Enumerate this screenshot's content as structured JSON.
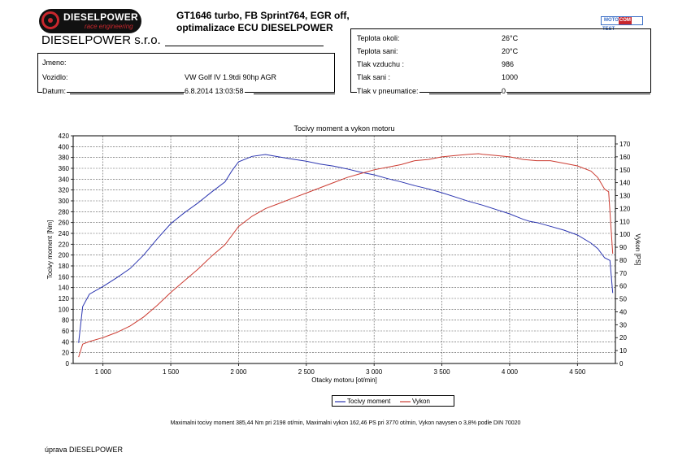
{
  "header": {
    "logo_text": "DIESELPOWER",
    "logo_subtext": "race engineering",
    "company": "DIESELPOWER s.r.o.",
    "title_line1": "GT1646 turbo, FB Sprint764, EGR off,",
    "title_line2": "optimalizace ECU DIESELPOWER",
    "brand_logo": {
      "left": "MOTO",
      "mid": "COM",
      "right": "TEST"
    }
  },
  "vehicle": {
    "rows": [
      {
        "label": "Jmeno:",
        "value": ""
      },
      {
        "label": "Vozidlo:",
        "value": "VW Golf IV 1.9tdi 90hp AGR"
      },
      {
        "label": "Datum:",
        "value": "6.8.2014 13:03:58"
      }
    ]
  },
  "conditions": {
    "rows": [
      {
        "label": "Teplota okoli:",
        "value": "26°C"
      },
      {
        "label": "Teplota sani:",
        "value": "20°C"
      },
      {
        "label": "Tlak vzduchu :",
        "value": "986"
      },
      {
        "label": "Tlak sani :",
        "value": "1000"
      },
      {
        "label": "Tlak v pneumatice:",
        "value": "0"
      }
    ]
  },
  "colors": {
    "torque": "#2b35b0",
    "power": "#cc3c32",
    "grid": "#555555",
    "logo_red": "#c9272d"
  },
  "chart_data": {
    "type": "line",
    "title": "Tocivy moment a vykon motoru",
    "xlabel": "Otacky motoru [ot/min]",
    "ylabel_left": "Tocivy moment [Nm]",
    "ylabel_right": "Vykon [PS]",
    "xlim": [
      780,
      4780
    ],
    "ylim_left": [
      0,
      420
    ],
    "ylim_right": [
      0,
      175
    ],
    "x_ticks": [
      1000,
      1500,
      2000,
      2500,
      3000,
      3500,
      4000,
      4500
    ],
    "x_tick_labels": [
      "1 000",
      "1 500",
      "2 000",
      "2 500",
      "3 000",
      "3 500",
      "4 000",
      "4 500"
    ],
    "y_left_ticks": [
      0,
      20,
      40,
      60,
      80,
      100,
      120,
      140,
      160,
      180,
      200,
      220,
      240,
      260,
      280,
      300,
      320,
      340,
      360,
      380,
      400,
      420
    ],
    "y_right_ticks": [
      0,
      10,
      20,
      30,
      40,
      50,
      60,
      70,
      80,
      90,
      100,
      110,
      120,
      130,
      140,
      150,
      160,
      170
    ],
    "grid": true,
    "legend_position": "bottom-center",
    "series": [
      {
        "name": "Tocivy moment",
        "axis": "left",
        "x": [
          820,
          850,
          900,
          1000,
          1100,
          1200,
          1300,
          1400,
          1500,
          1600,
          1700,
          1800,
          1900,
          1950,
          2000,
          2100,
          2198,
          2300,
          2400,
          2500,
          2600,
          2700,
          2800,
          2900,
          3000,
          3100,
          3200,
          3300,
          3400,
          3500,
          3600,
          3700,
          3800,
          3900,
          4000,
          4100,
          4150,
          4200,
          4300,
          4400,
          4500,
          4600,
          4650,
          4700,
          4740,
          4760
        ],
        "y": [
          38,
          105,
          128,
          142,
          158,
          175,
          200,
          230,
          258,
          278,
          296,
          316,
          335,
          355,
          372,
          382,
          385.44,
          381,
          377,
          373,
          368,
          364,
          359,
          353,
          348,
          341,
          335,
          328,
          322,
          315,
          307,
          299,
          292,
          284,
          276,
          266,
          262,
          260,
          253,
          246,
          237,
          222,
          212,
          195,
          190,
          130
        ]
      },
      {
        "name": "Vykon",
        "axis": "right",
        "x": [
          820,
          850,
          900,
          1000,
          1100,
          1200,
          1300,
          1400,
          1500,
          1600,
          1700,
          1800,
          1900,
          2000,
          2100,
          2200,
          2300,
          2400,
          2500,
          2600,
          2700,
          2800,
          2900,
          3000,
          3100,
          3200,
          3300,
          3400,
          3500,
          3600,
          3700,
          3770,
          3800,
          3900,
          4000,
          4100,
          4200,
          4300,
          4400,
          4500,
          4600,
          4650,
          4700,
          4730,
          4760
        ],
        "y": [
          5,
          15,
          17,
          20,
          24,
          29,
          36,
          45,
          55,
          64,
          73,
          83,
          92,
          106,
          114,
          120,
          124,
          128,
          132,
          136,
          140,
          144,
          147,
          150,
          152,
          154,
          157,
          158,
          160,
          161,
          162,
          162.46,
          162,
          161,
          160,
          158,
          157,
          157,
          155,
          153,
          149,
          144,
          135,
          133,
          85
        ]
      }
    ],
    "footnote": "Maximalni tocivy moment 385,44 Nm pri 2198 ot/min,  Maximalni vykon 162,46 PS pri 3770 ot/min,  Vykon navysen o 3,8% podle DIN 70020"
  },
  "footer": {
    "text": "úprava DIESELPOWER"
  }
}
